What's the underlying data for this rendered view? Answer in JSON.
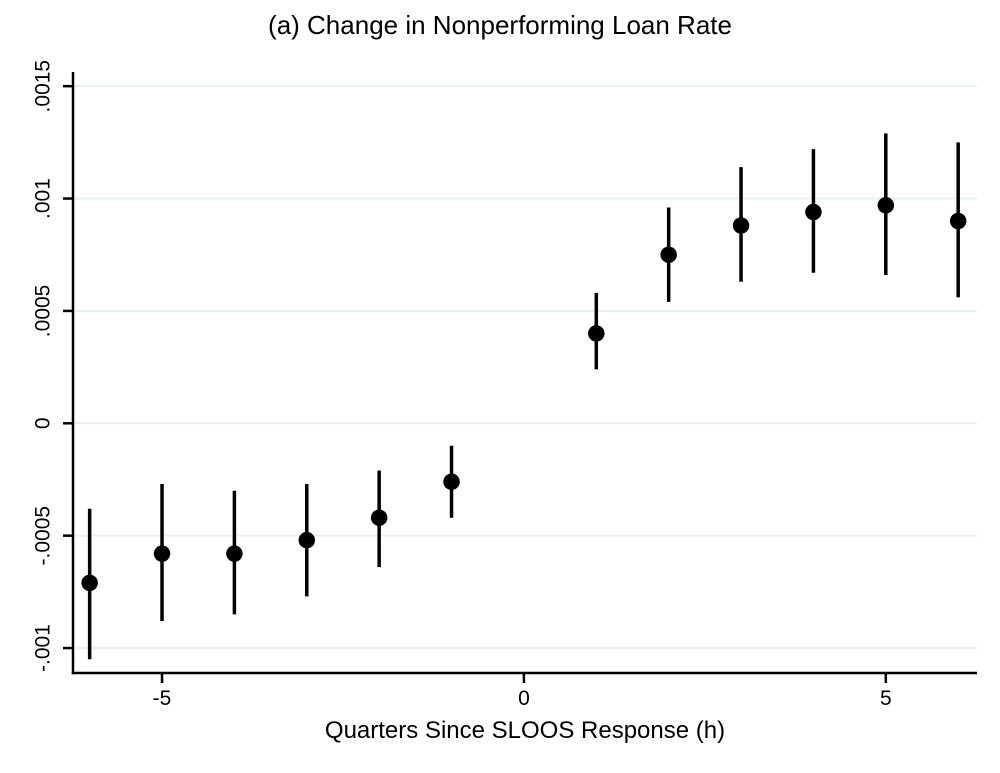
{
  "chart_data": {
    "type": "scatter",
    "title": "(a) Change in Nonperforming Loan Rate",
    "xlabel": "Quarters Since SLOOS Response (h)",
    "ylabel": "",
    "xlim": [
      -6.23,
      6.26
    ],
    "ylim": [
      -0.001111,
      0.001563
    ],
    "grid": "horizontal",
    "legend": "none",
    "x_ticks": [
      {
        "value": -5,
        "label": "-5"
      },
      {
        "value": 0,
        "label": "0"
      },
      {
        "value": 5,
        "label": "5"
      }
    ],
    "y_ticks": [
      {
        "value": -0.001,
        "label": "-.001"
      },
      {
        "value": -0.0005,
        "label": "-.0005"
      },
      {
        "value": 0,
        "label": "0"
      },
      {
        "value": 0.0005,
        "label": ".0005"
      },
      {
        "value": 0.001,
        "label": ".001"
      },
      {
        "value": 0.0015,
        "label": ".0015"
      }
    ],
    "series": [
      {
        "name": "coefficient-estimates",
        "marker": "filled-circle",
        "error_bars": "95-percent-ci",
        "points": [
          {
            "x": -6,
            "y": -0.00071,
            "lo": -0.00105,
            "hi": -0.00038
          },
          {
            "x": -5,
            "y": -0.00058,
            "lo": -0.00088,
            "hi": -0.00027
          },
          {
            "x": -4,
            "y": -0.00058,
            "lo": -0.00085,
            "hi": -0.0003
          },
          {
            "x": -3,
            "y": -0.00052,
            "lo": -0.00077,
            "hi": -0.00027
          },
          {
            "x": -2,
            "y": -0.00042,
            "lo": -0.00064,
            "hi": -0.00021
          },
          {
            "x": -1,
            "y": -0.00026,
            "lo": -0.00042,
            "hi": -0.0001
          },
          {
            "x": 1,
            "y": 0.0004,
            "lo": 0.00024,
            "hi": 0.00058
          },
          {
            "x": 2,
            "y": 0.00075,
            "lo": 0.00054,
            "hi": 0.00096
          },
          {
            "x": 3,
            "y": 0.00088,
            "lo": 0.00063,
            "hi": 0.00114
          },
          {
            "x": 4,
            "y": 0.00094,
            "lo": 0.00067,
            "hi": 0.00122
          },
          {
            "x": 5,
            "y": 0.00097,
            "lo": 0.00066,
            "hi": 0.00129
          },
          {
            "x": 6,
            "y": 0.0009,
            "lo": 0.00056,
            "hi": 0.00125
          }
        ]
      }
    ],
    "colors": {
      "marker": "#000000",
      "error_bar": "#000000",
      "axis": "#000000",
      "gridline": "#e8f0f2",
      "background": "#ffffff",
      "text": "#000000"
    }
  }
}
